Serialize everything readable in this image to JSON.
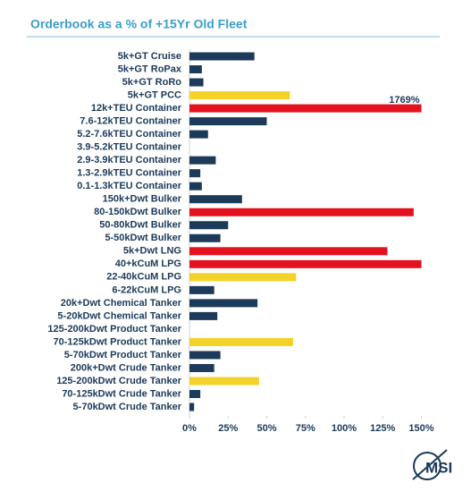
{
  "chart_data": {
    "type": "barh",
    "title": "Orderbook as a % of +15Yr Old Fleet",
    "categories": [
      "5k+GT Cruise",
      "5k+GT RoPax",
      "5k+GT RoRo",
      "5k+GT PCC",
      "12k+TEU Container",
      "7.6-12kTEU Container",
      "5.2-7.6kTEU Container",
      "3.9-5.2kTEU Container",
      "2.9-3.9kTEU Container",
      "1.3-2.9kTEU Container",
      "0.1-1.3kTEU Container",
      "150k+Dwt Bulker",
      "80-150kDwt Bulker",
      "50-80kDwt Bulker",
      "5-50kDwt Bulker",
      "5k+Dwt LNG",
      "40+kCuM LPG",
      "22-40kCuM LPG",
      "6-22kCuM LPG",
      "20k+Dwt Chemical Tanker",
      "5-20kDwt Chemical Tanker",
      "125-200kDwt Product Tanker",
      "70-125kDwt Product Tanker",
      "5-70kDwt Product Tanker",
      "200k+Dwt Crude Tanker",
      "125-200kDwt Crude Tanker",
      "70-125kDwt Crude Tanker",
      "5-70kDwt Crude Tanker"
    ],
    "values": [
      42,
      8,
      9,
      65,
      1769,
      50,
      12,
      0,
      17,
      7,
      8,
      34,
      145,
      25,
      20,
      128,
      150,
      69,
      16,
      44,
      18,
      0,
      67,
      20,
      16,
      45,
      7,
      3
    ],
    "value_labels": [
      null,
      null,
      null,
      null,
      "1769%",
      null,
      null,
      null,
      null,
      null,
      null,
      null,
      null,
      null,
      null,
      null,
      null,
      null,
      null,
      null,
      null,
      null,
      null,
      null,
      null,
      null,
      null,
      null
    ],
    "colors": [
      "#1c3a5a",
      "#1c3a5a",
      "#1c3a5a",
      "#f3d22a",
      "#e3121e",
      "#1c3a5a",
      "#1c3a5a",
      "#1c3a5a",
      "#1c3a5a",
      "#1c3a5a",
      "#1c3a5a",
      "#1c3a5a",
      "#e3121e",
      "#1c3a5a",
      "#1c3a5a",
      "#e3121e",
      "#e3121e",
      "#f3d22a",
      "#1c3a5a",
      "#1c3a5a",
      "#1c3a5a",
      "#1c3a5a",
      "#f3d22a",
      "#1c3a5a",
      "#1c3a5a",
      "#f3d22a",
      "#1c3a5a",
      "#1c3a5a"
    ],
    "xlim": [
      0,
      150
    ],
    "xticks": [
      {
        "value": 0,
        "label": "0%"
      },
      {
        "value": 25,
        "label": "25%"
      },
      {
        "value": 50,
        "label": "50%"
      },
      {
        "value": 75,
        "label": "75%"
      },
      {
        "value": 100,
        "label": "100%"
      },
      {
        "value": 125,
        "label": "125%"
      },
      {
        "value": 150,
        "label": "150%"
      }
    ],
    "logo": "MSI"
  }
}
